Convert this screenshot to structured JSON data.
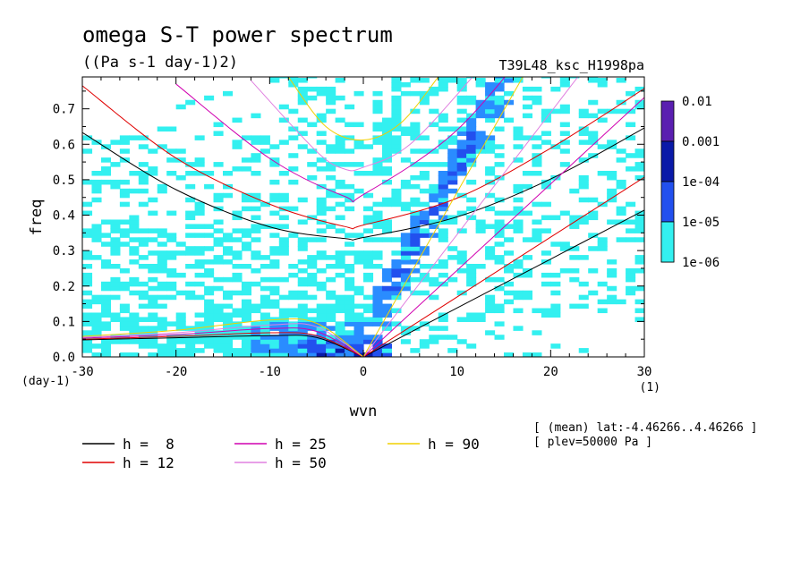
{
  "chart_data": {
    "type": "heatmap",
    "title": "omega S-T power spectrum",
    "subtitle": "((Pa s-1 day-1)2)",
    "experiment": "T39L48_ksc_H1998pa",
    "xlabel": "wvn",
    "ylabel": "freq",
    "x_unit": "(1)",
    "y_unit": "(day-1)",
    "xlim": [
      -30,
      30
    ],
    "ylim": [
      0,
      0.79
    ],
    "x_ticks": [
      "-30",
      "-20",
      "-10",
      "0",
      "10",
      "20",
      "30"
    ],
    "x_tick_values": [
      -30,
      -20,
      -10,
      0,
      10,
      20,
      30
    ],
    "y_ticks": [
      "0.0",
      "0.1",
      "0.2",
      "0.3",
      "0.4",
      "0.5",
      "0.6",
      "0.7"
    ],
    "y_tick_values": [
      0,
      0.1,
      0.2,
      0.3,
      0.4,
      0.5,
      0.6,
      0.7
    ],
    "colorbar": {
      "levels": [
        "0.01",
        "0.001",
        "1e-04",
        "1e-05",
        "1e-06"
      ],
      "colors": [
        "#5a1fb0",
        "#0a1aa8",
        "#2250ee",
        "#2a8cff",
        "#33f0f0"
      ]
    },
    "power_regions": [
      {
        "level": "1e-06",
        "region": "background and equatorial wave bands"
      },
      {
        "level": "1e-05",
        "region": "eastward wavenumber 2-12 diagonal band"
      },
      {
        "level": "1e-04",
        "region": "low frequency near wvn -5..0 and Kelvin band"
      },
      {
        "level": "0.001",
        "region": "small patches near origin"
      }
    ],
    "dispersion_curves": [
      {
        "label": "h =  8",
        "color": "#000000",
        "kelvin": [
          [
            0,
            0
          ],
          [
            10,
            0.138
          ],
          [
            20,
            0.276
          ],
          [
            30,
            0.414
          ]
        ],
        "eig": [
          [
            -30,
            0.633
          ],
          [
            -20,
            0.472
          ],
          [
            -10,
            0.367
          ],
          [
            -2,
            0.334
          ],
          [
            0,
            0.337
          ],
          [
            10,
            0.395
          ],
          [
            20,
            0.502
          ],
          [
            30,
            0.646
          ]
        ],
        "mrg": [
          [
            -30,
            0.048
          ],
          [
            -20,
            0.054
          ],
          [
            -10,
            0.06
          ],
          [
            -5,
            0.055
          ],
          [
            0,
            0
          ]
        ]
      },
      {
        "label": "h = 12",
        "color": "#e00000",
        "kelvin": [
          [
            0,
            0
          ],
          [
            10,
            0.169
          ],
          [
            20,
            0.338
          ],
          [
            30,
            0.507
          ]
        ],
        "eig": [
          [
            -30,
            0.765
          ],
          [
            -20,
            0.561
          ],
          [
            -10,
            0.431
          ],
          [
            -2,
            0.368
          ],
          [
            0,
            0.372
          ],
          [
            10,
            0.448
          ],
          [
            20,
            0.589
          ],
          [
            30,
            0.757
          ]
        ],
        "mrg": [
          [
            -30,
            0.05
          ],
          [
            -20,
            0.058
          ],
          [
            -10,
            0.068
          ],
          [
            -5,
            0.06
          ],
          [
            0,
            0
          ]
        ]
      },
      {
        "label": "h = 25",
        "color": "#d000b0",
        "kelvin": [
          [
            0,
            0
          ],
          [
            10,
            0.244
          ],
          [
            20,
            0.488
          ],
          [
            30,
            0.732
          ]
        ],
        "eig": [
          [
            -20,
            0.77
          ],
          [
            -10,
            0.56
          ],
          [
            -2,
            0.453
          ],
          [
            0,
            0.458
          ],
          [
            10,
            0.64
          ],
          [
            20,
            0.95
          ]
        ],
        "mrg": [
          [
            -30,
            0.053
          ],
          [
            -20,
            0.063
          ],
          [
            -10,
            0.08
          ],
          [
            -5,
            0.072
          ],
          [
            0,
            0
          ]
        ]
      },
      {
        "label": "h = 50",
        "color": "#e080e0",
        "kelvin": [
          [
            0,
            0
          ],
          [
            10,
            0.345
          ],
          [
            20,
            0.69
          ],
          [
            30,
            1.035
          ]
        ],
        "eig": [
          [
            -12,
            0.78
          ],
          [
            -5,
            0.58
          ],
          [
            -2,
            0.53
          ],
          [
            0,
            0.535
          ],
          [
            5,
            0.6
          ],
          [
            12,
            0.8
          ]
        ],
        "mrg": [
          [
            -30,
            0.055
          ],
          [
            -20,
            0.068
          ],
          [
            -10,
            0.09
          ],
          [
            -5,
            0.085
          ],
          [
            0,
            0
          ]
        ]
      },
      {
        "label": "h = 90",
        "color": "#f0d000",
        "kelvin": [
          [
            0,
            0
          ],
          [
            10,
            0.464
          ],
          [
            20,
            0.928
          ]
        ],
        "eig": [
          [
            -8,
            0.79
          ],
          [
            -4,
            0.65
          ],
          [
            0,
            0.612
          ],
          [
            4,
            0.66
          ],
          [
            8,
            0.79
          ]
        ],
        "mrg": [
          [
            -30,
            0.058
          ],
          [
            -20,
            0.075
          ],
          [
            -10,
            0.104
          ],
          [
            -5,
            0.095
          ],
          [
            0,
            0
          ]
        ]
      }
    ]
  },
  "legend": [
    {
      "label": "h =  8",
      "color": "#000000"
    },
    {
      "label": "h = 12",
      "color": "#e00000"
    },
    {
      "label": "h = 25",
      "color": "#d000b0"
    },
    {
      "label": "h = 50",
      "color": "#e080e0"
    },
    {
      "label": "h = 90",
      "color": "#f0d000"
    }
  ],
  "info": {
    "mean": "[ (mean) lat:-4.46266..4.46266 ]",
    "plev": "[ plev=50000 Pa ]"
  }
}
